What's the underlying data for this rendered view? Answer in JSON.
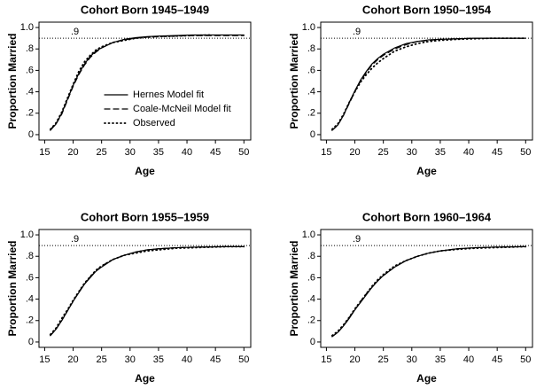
{
  "chart_data": [
    {
      "type": "line",
      "title": "Cohort Born 1945–1949",
      "xlabel": "Age",
      "ylabel": "Proportion Married",
      "x": [
        16,
        17,
        18,
        19,
        20,
        21,
        22,
        23,
        24,
        25,
        27,
        29,
        31,
        33,
        35,
        38,
        41,
        44,
        47,
        50
      ],
      "series": [
        {
          "name": "Hernes Model fit",
          "color": "#000000",
          "style": "solid",
          "values": [
            0.04,
            0.1,
            0.2,
            0.33,
            0.46,
            0.57,
            0.66,
            0.73,
            0.78,
            0.81,
            0.86,
            0.89,
            0.905,
            0.915,
            0.92,
            0.925,
            0.93,
            0.93,
            0.93,
            0.93
          ]
        },
        {
          "name": "Coale-McNeil Model fit",
          "color": "#000000",
          "style": "dashed",
          "values": [
            0.05,
            0.1,
            0.19,
            0.32,
            0.45,
            0.56,
            0.65,
            0.72,
            0.77,
            0.81,
            0.86,
            0.885,
            0.9,
            0.91,
            0.915,
            0.92,
            0.925,
            0.925,
            0.925,
            0.925
          ]
        },
        {
          "name": "Observed",
          "color": "#000000",
          "style": "dotted",
          "values": [
            0.05,
            0.11,
            0.21,
            0.34,
            0.47,
            0.59,
            0.68,
            0.74,
            0.79,
            0.82,
            0.86,
            0.88,
            0.9,
            0.91,
            0.915,
            0.92,
            0.925,
            0.93,
            null,
            null
          ]
        }
      ],
      "hline": {
        "value": 0.9,
        "label": ".9"
      },
      "legend": "right",
      "xlim": [
        14,
        51.2
      ],
      "xticks": [
        15,
        20,
        25,
        30,
        35,
        40,
        45,
        50
      ],
      "ylim": [
        -0.05,
        1.05
      ],
      "yticks": [
        0,
        {
          "value": 0.2,
          "label": ".2"
        },
        {
          "value": 0.4,
          "label": ".4"
        },
        {
          "value": 0.6,
          "label": ".6"
        },
        {
          "value": 0.8,
          "label": ".8"
        },
        {
          "value": 1.0,
          "label": "1.0"
        }
      ]
    },
    {
      "type": "line",
      "title": "Cohort Born 1950–1954",
      "xlabel": "Age",
      "ylabel": "Proportion Married",
      "x": [
        16,
        17,
        18,
        19,
        20,
        21,
        22,
        23,
        24,
        25,
        27,
        29,
        31,
        33,
        35,
        38,
        41,
        44,
        47,
        50
      ],
      "series": [
        {
          "color": "#000000",
          "style": "solid",
          "values": [
            0.04,
            0.09,
            0.18,
            0.3,
            0.41,
            0.51,
            0.59,
            0.66,
            0.71,
            0.75,
            0.81,
            0.85,
            0.87,
            0.885,
            0.89,
            0.895,
            0.9,
            0.9,
            0.9,
            0.9
          ]
        },
        {
          "color": "#000000",
          "style": "dashed",
          "values": [
            0.04,
            0.09,
            0.18,
            0.29,
            0.4,
            0.5,
            0.58,
            0.65,
            0.7,
            0.74,
            0.8,
            0.84,
            0.87,
            0.88,
            0.89,
            0.895,
            0.9,
            0.9,
            0.9,
            0.9
          ]
        },
        {
          "color": "#000000",
          "style": "dotted",
          "values": [
            0.05,
            0.1,
            0.19,
            0.3,
            0.4,
            0.49,
            0.56,
            0.62,
            0.67,
            0.71,
            0.78,
            0.82,
            0.85,
            0.87,
            0.88,
            0.89,
            0.895,
            0.9,
            0.9,
            0.9
          ]
        }
      ],
      "hline": {
        "value": 0.9,
        "label": ".9"
      },
      "xlim": [
        14,
        51.2
      ],
      "xticks": [
        15,
        20,
        25,
        30,
        35,
        40,
        45,
        50
      ],
      "ylim": [
        -0.05,
        1.05
      ],
      "yticks": [
        0,
        {
          "value": 0.2,
          "label": ".2"
        },
        {
          "value": 0.4,
          "label": ".4"
        },
        {
          "value": 0.6,
          "label": ".6"
        },
        {
          "value": 0.8,
          "label": ".8"
        },
        {
          "value": 1.0,
          "label": "1.0"
        }
      ]
    },
    {
      "type": "line",
      "title": "Cohort Born 1955–1959",
      "xlabel": "Age",
      "ylabel": "Proportion Married",
      "x": [
        16,
        17,
        18,
        19,
        20,
        21,
        22,
        23,
        24,
        25,
        27,
        29,
        31,
        33,
        35,
        38,
        41,
        44,
        47,
        50
      ],
      "series": [
        {
          "color": "#000000",
          "style": "solid",
          "values": [
            0.06,
            0.12,
            0.2,
            0.29,
            0.38,
            0.46,
            0.54,
            0.6,
            0.66,
            0.7,
            0.77,
            0.81,
            0.84,
            0.86,
            0.87,
            0.88,
            0.885,
            0.888,
            0.89,
            0.89
          ]
        },
        {
          "color": "#000000",
          "style": "dashed",
          "values": [
            0.06,
            0.12,
            0.2,
            0.29,
            0.38,
            0.47,
            0.54,
            0.61,
            0.66,
            0.71,
            0.77,
            0.81,
            0.84,
            0.86,
            0.87,
            0.88,
            0.885,
            0.888,
            0.89,
            0.89
          ]
        },
        {
          "color": "#000000",
          "style": "dotted",
          "values": [
            0.07,
            0.13,
            0.22,
            0.3,
            0.39,
            0.47,
            0.55,
            0.61,
            0.67,
            0.71,
            0.77,
            0.81,
            0.83,
            0.85,
            0.86,
            0.875,
            0.88,
            0.885,
            0.89,
            0.89
          ]
        }
      ],
      "hline": {
        "value": 0.9,
        "label": ".9"
      },
      "xlim": [
        14,
        51.2
      ],
      "xticks": [
        15,
        20,
        25,
        30,
        35,
        40,
        45,
        50
      ],
      "ylim": [
        -0.05,
        1.05
      ],
      "yticks": [
        0,
        {
          "value": 0.2,
          "label": ".2"
        },
        {
          "value": 0.4,
          "label": ".4"
        },
        {
          "value": 0.6,
          "label": ".6"
        },
        {
          "value": 0.8,
          "label": ".8"
        },
        {
          "value": 1.0,
          "label": "1.0"
        }
      ]
    },
    {
      "type": "line",
      "title": "Cohort Born 1960–1964",
      "xlabel": "Age",
      "ylabel": "Proportion Married",
      "x": [
        16,
        17,
        18,
        19,
        20,
        21,
        22,
        23,
        24,
        25,
        27,
        29,
        31,
        33,
        35,
        38,
        41,
        44,
        47,
        50
      ],
      "series": [
        {
          "color": "#000000",
          "style": "solid",
          "values": [
            0.05,
            0.09,
            0.15,
            0.22,
            0.3,
            0.37,
            0.44,
            0.51,
            0.57,
            0.62,
            0.7,
            0.76,
            0.8,
            0.83,
            0.85,
            0.87,
            0.88,
            0.885,
            0.888,
            0.89
          ]
        },
        {
          "color": "#000000",
          "style": "dashed",
          "values": [
            0.05,
            0.09,
            0.15,
            0.23,
            0.3,
            0.38,
            0.45,
            0.51,
            0.57,
            0.62,
            0.7,
            0.76,
            0.8,
            0.83,
            0.85,
            0.87,
            0.88,
            0.885,
            0.888,
            0.89
          ]
        },
        {
          "color": "#000000",
          "style": "dotted",
          "values": [
            0.06,
            0.1,
            0.16,
            0.23,
            0.31,
            0.38,
            0.45,
            0.52,
            0.58,
            0.63,
            0.71,
            0.76,
            0.8,
            0.83,
            0.85,
            0.865,
            0.875,
            0.88,
            0.885,
            0.89
          ]
        }
      ],
      "hline": {
        "value": 0.9,
        "label": ".9"
      },
      "xlim": [
        14,
        51.2
      ],
      "xticks": [
        15,
        20,
        25,
        30,
        35,
        40,
        45,
        50
      ],
      "ylim": [
        -0.05,
        1.05
      ],
      "yticks": [
        0,
        {
          "value": 0.2,
          "label": ".2"
        },
        {
          "value": 0.4,
          "label": ".4"
        },
        {
          "value": 0.6,
          "label": ".6"
        },
        {
          "value": 0.8,
          "label": ".8"
        },
        {
          "value": 1.0,
          "label": "1.0"
        }
      ]
    }
  ]
}
